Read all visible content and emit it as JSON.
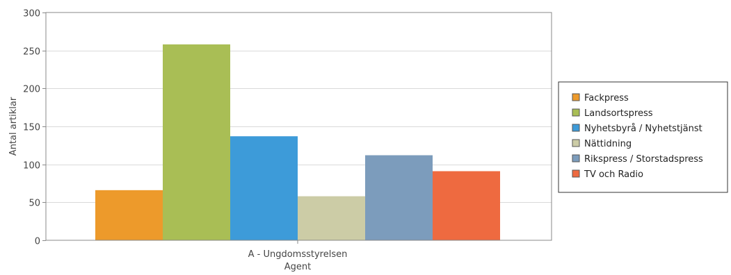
{
  "chart_data": {
    "type": "bar",
    "categories": [
      "A - Ungdomsstyrelsen"
    ],
    "xlabel": "Agent",
    "ylabel": "Antal artiklar",
    "ylim": [
      0,
      300
    ],
    "yticks": [
      0,
      50,
      100,
      150,
      200,
      250,
      300
    ],
    "grid": true,
    "legend_position": "right",
    "series": [
      {
        "name": "Fackpress",
        "values": [
          66
        ],
        "color": "#ED9A2B"
      },
      {
        "name": "Landsortspress",
        "values": [
          258
        ],
        "color": "#A9BE55"
      },
      {
        "name": "Nyhetsbyrå / Nyhetstjänst",
        "values": [
          137
        ],
        "color": "#3D9BD9"
      },
      {
        "name": "Nättidning",
        "values": [
          58
        ],
        "color": "#CCCCA6"
      },
      {
        "name": "Rikspress / Storstadspress",
        "values": [
          112
        ],
        "color": "#7C9CBC"
      },
      {
        "name": "TV och Radio",
        "values": [
          91
        ],
        "color": "#EE6A40"
      }
    ]
  }
}
